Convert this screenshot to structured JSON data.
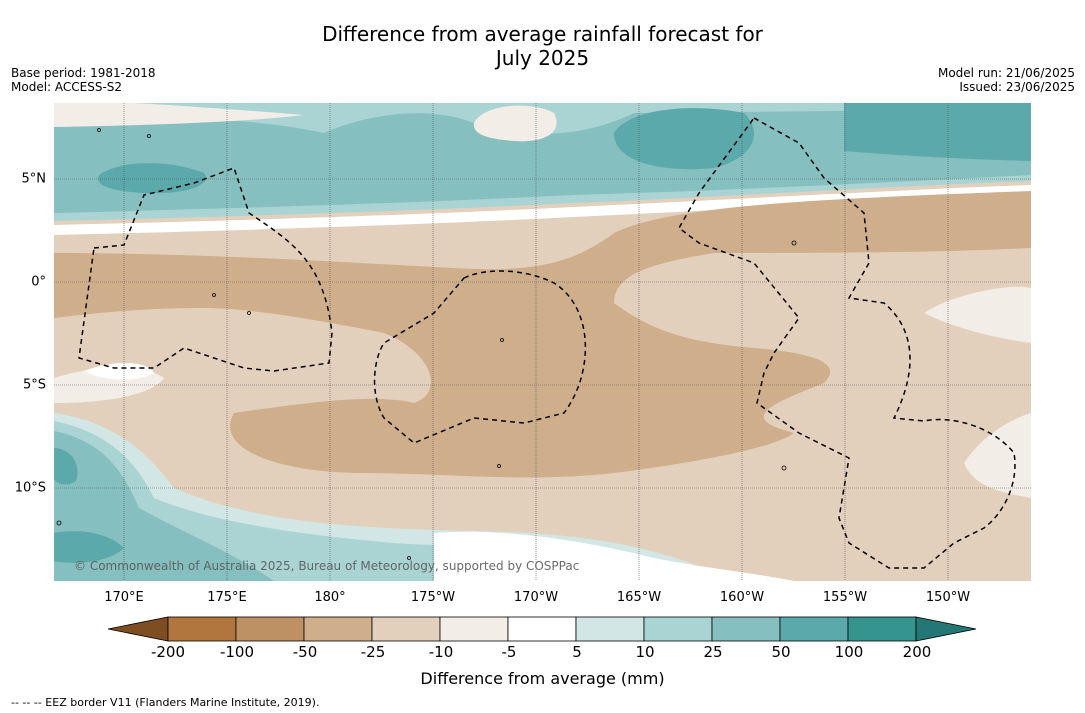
{
  "title_line1": "Difference from average rainfall forecast for",
  "title_line2": "July 2025",
  "base_period": "Base period: 1981-2018",
  "model": "Model: ACCESS-S2",
  "model_run": "Model run: 21/06/2025",
  "issued": "Issued: 23/06/2025",
  "lon_labels": [
    "170°E",
    "175°E",
    "180°",
    "175°W",
    "170°W",
    "165°W",
    "160°W",
    "155°W",
    "150°W"
  ],
  "lat_labels": [
    "5°N",
    "0°",
    "5°S",
    "10°S"
  ],
  "colorbar": {
    "ticks": [
      "-200",
      "-100",
      "-50",
      "-25",
      "-10",
      "-5",
      "5",
      "10",
      "25",
      "50",
      "100",
      "200"
    ],
    "label": "Difference from average (mm)",
    "colors": [
      "#7e4e22",
      "#b0763e",
      "#bd9164",
      "#cfae8b",
      "#e3d0bc",
      "#f2ede6",
      "#ffffff",
      "#d2e7e5",
      "#aad4d3",
      "#85bfbf",
      "#5ba9ab",
      "#36948f",
      "#237775"
    ]
  },
  "copyright": "© Commonwealth of Australia 2025, Bureau of Meteorology, supported by COSPPac",
  "footnote": "-- -- -- EEZ border V11 (Flanders Marine Institute, 2019).",
  "map_colors": {
    "wet_light": "#d2e7e5",
    "wet_mid": "#aad4d3",
    "wet": "#85bfbf",
    "wet_dark": "#5ba9ab",
    "dry_light": "#f2ede6",
    "dry": "#e3d0bc",
    "dry_mid": "#cfae8b"
  }
}
